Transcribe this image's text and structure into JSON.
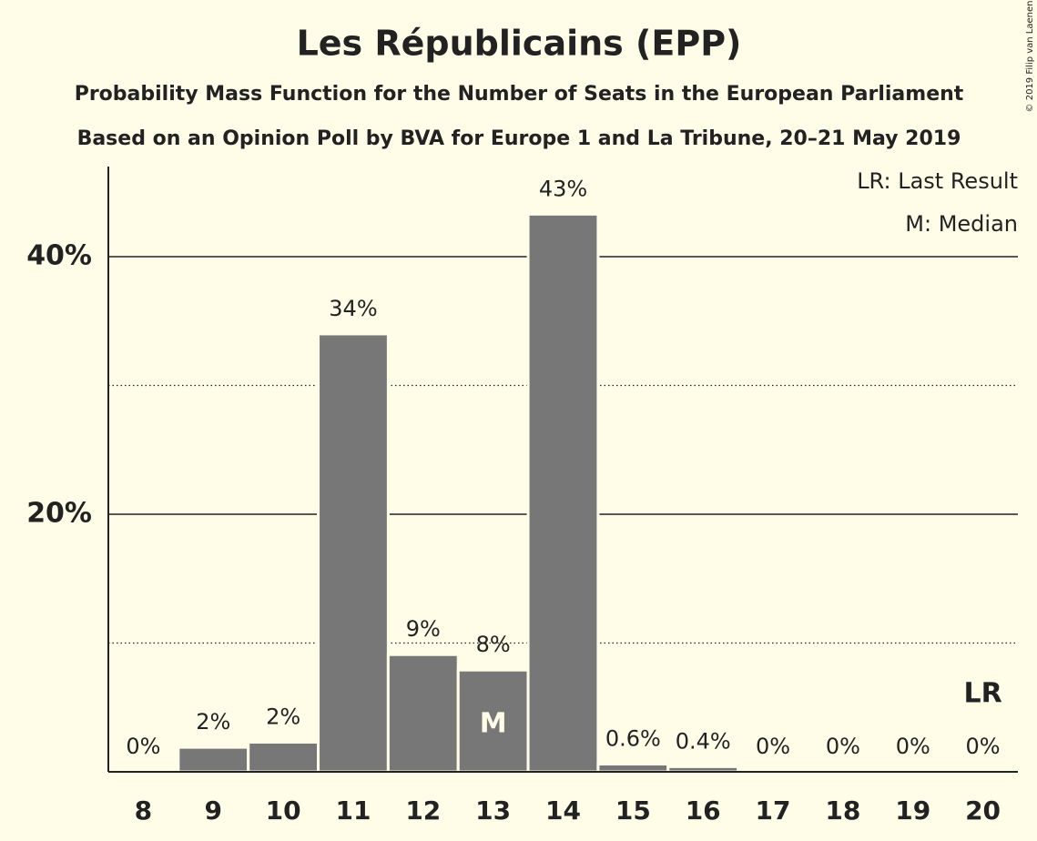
{
  "chart_data": {
    "type": "bar",
    "title": "Les Républicains (EPP)",
    "subtitle": "Probability Mass Function for the Number of Seats in the European Parliament",
    "subtitle2": "Based on an Opinion Poll by BVA for Europe 1 and La Tribune, 20–21 May 2019",
    "copyright": "© 2019 Filip van Laenen",
    "x": [
      8,
      9,
      10,
      11,
      12,
      13,
      14,
      15,
      16,
      17,
      18,
      19,
      20
    ],
    "values": [
      0,
      1.9,
      2.3,
      34.0,
      9.1,
      7.9,
      43.3,
      0.6,
      0.4,
      0,
      0,
      0,
      0
    ],
    "value_labels": [
      "0%",
      "2%",
      "2%",
      "34%",
      "9%",
      "8%",
      "43%",
      "0.6%",
      "0.4%",
      "0%",
      "0%",
      "0%",
      "0%"
    ],
    "color": "#777777",
    "xlim": [
      7.5,
      20.5
    ],
    "ylim": [
      0,
      47
    ],
    "yticks": [
      {
        "value": 20,
        "label": "20%"
      },
      {
        "value": 40,
        "label": "40%"
      }
    ],
    "minor_yticks": [
      10,
      30
    ],
    "grid": true,
    "median": 13,
    "median_label": "M",
    "last_result": 20,
    "last_result_label": "LR",
    "legend": [
      "LR: Last Result",
      "M: Median"
    ]
  }
}
